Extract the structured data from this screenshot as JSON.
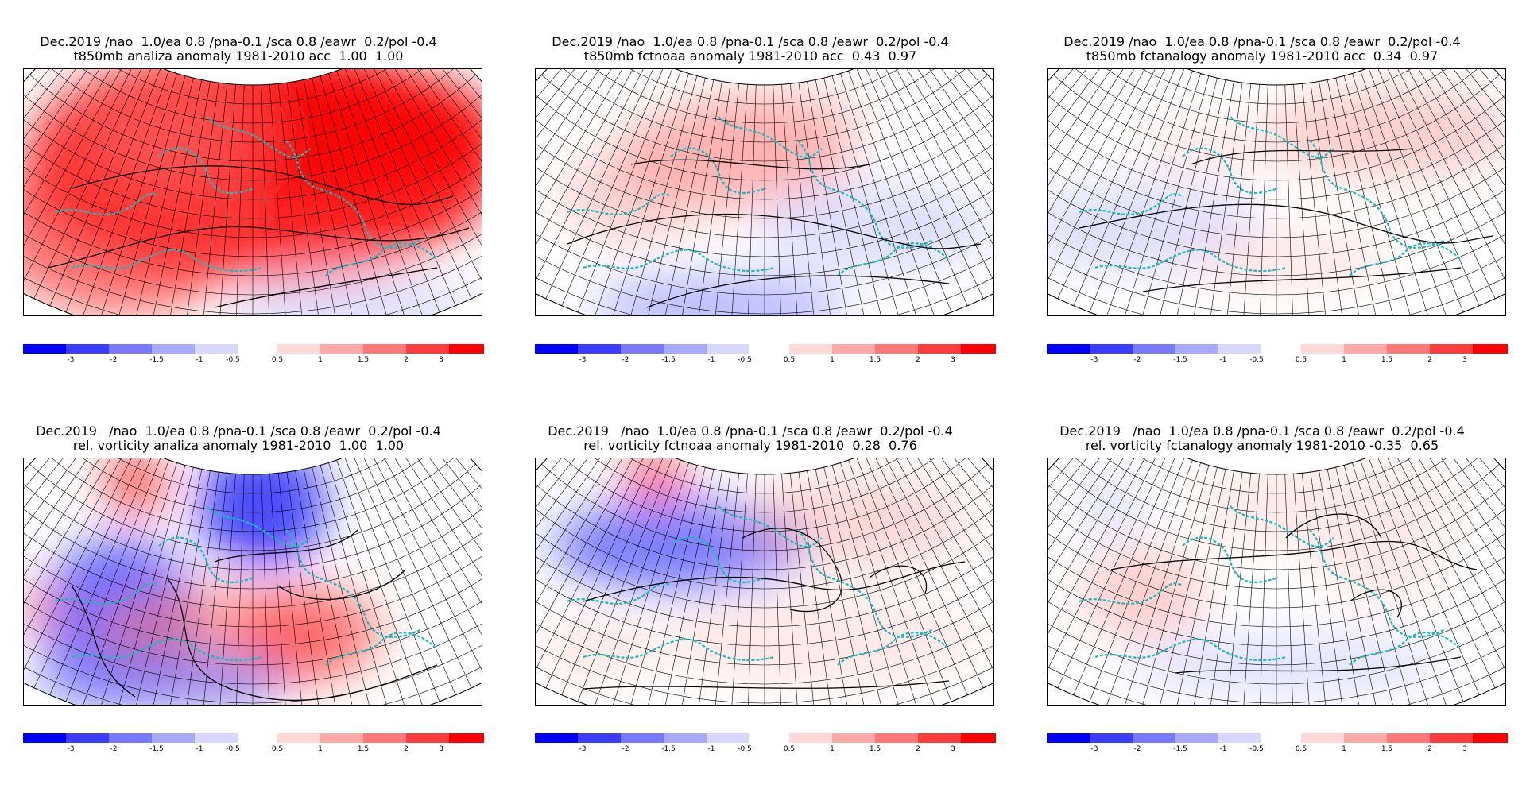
{
  "panels": [
    {
      "line1": "Dec.2019 /nao  1.0/ea 0.8 /pna-0.1 /sca 0.8 /eawr  0.2/pol -0.4",
      "line2": "t850mb analiza anomaly 1981-2010 acc  1.00  1.00",
      "variable": "t850mb",
      "source": "analiza",
      "acc": [
        1.0,
        1.0
      ]
    },
    {
      "line1": "Dec.2019 /nao  1.0/ea 0.8 /pna-0.1 /sca 0.8 /eawr  0.2/pol -0.4",
      "line2": "t850mb fctnoaa anomaly 1981-2010 acc  0.43  0.97",
      "variable": "t850mb",
      "source": "fctnoaa",
      "acc": [
        0.43,
        0.97
      ]
    },
    {
      "line1": "Dec.2019 /nao  1.0/ea 0.8 /pna-0.1 /sca 0.8 /eawr  0.2/pol -0.4",
      "line2": "t850mb fctanalogy anomaly 1981-2010 acc  0.34  0.97",
      "variable": "t850mb",
      "source": "fctanalogy",
      "acc": [
        0.34,
        0.97
      ]
    },
    {
      "line1": "Dec.2019   /nao  1.0/ea 0.8 /pna-0.1 /sca 0.8 /eawr  0.2/pol -0.4",
      "line2": "rel. vorticity analiza anomaly 1981-2010  1.00  1.00",
      "variable": "rel. vorticity",
      "source": "analiza",
      "acc": [
        1.0,
        1.0
      ]
    },
    {
      "line1": "Dec.2019   /nao  1.0/ea 0.8 /pna-0.1 /sca 0.8 /eawr  0.2/pol -0.4",
      "line2": "rel. vorticity fctnoaa anomaly 1981-2010  0.28  0.76",
      "variable": "rel. vorticity",
      "source": "fctnoaa",
      "acc": [
        0.28,
        0.76
      ]
    },
    {
      "line1": "Dec.2019   /nao  1.0/ea 0.8 /pna-0.1 /sca 0.8 /eawr  0.2/pol -0.4",
      "line2": "rel. vorticity fctanalogy anomaly 1981-2010 -0.35  0.65",
      "variable": "rel. vorticity",
      "source": "fctanalogy",
      "acc": [
        -0.35,
        0.65
      ]
    }
  ],
  "colorbar": {
    "negative_labels": [
      "-3",
      "-2",
      "-1.5",
      "-1",
      "-0.5"
    ],
    "positive_labels": [
      "0.5",
      "1",
      "1.5",
      "2",
      "3"
    ],
    "negative_colors": [
      "#0000ff",
      "#3c3cff",
      "#7878ff",
      "#a8a8ff",
      "#d8d8ff"
    ],
    "positive_colors": [
      "#ffd8d8",
      "#ffa8a8",
      "#ff7878",
      "#ff3c3c",
      "#ff0000"
    ]
  },
  "map_style": {
    "grid_color": "#000000",
    "coast_color": "#20b8b8",
    "contour_color": "#000000"
  }
}
